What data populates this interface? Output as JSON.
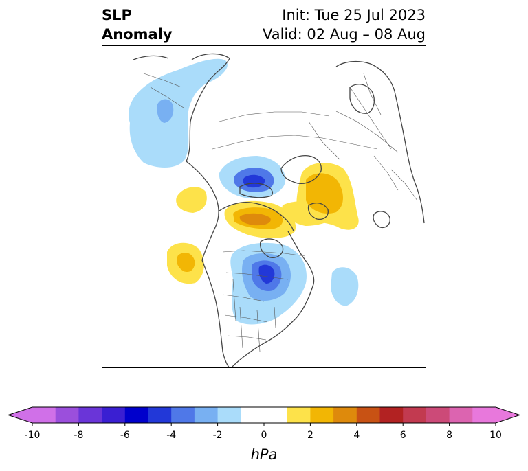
{
  "title": {
    "left_line1": "SLP",
    "left_line2": "Anomaly",
    "init": "Init: Tue 25 Jul 2023",
    "valid": "Valid: 02 Aug – 08 Aug"
  },
  "colorbar": {
    "unit": "hPa",
    "min": -10,
    "max": 10,
    "step": 1,
    "tick_values": [
      -10,
      -8,
      -6,
      -4,
      -2,
      0,
      2,
      4,
      6,
      8,
      10
    ],
    "tick_labels": [
      "-10",
      "-8",
      "-6",
      "-4",
      "-2",
      "0",
      "2",
      "4",
      "6",
      "8",
      "10"
    ],
    "colors": [
      "#d070e8",
      "#9b4fdc",
      "#6a35d8",
      "#3a1fd2",
      "#0000cc",
      "#2238d8",
      "#4f78e8",
      "#78b0f2",
      "#aadcfa",
      "#ffffff",
      "#ffffff",
      "#fde24a",
      "#f2b604",
      "#de8a0c",
      "#c85214",
      "#b22222",
      "#c23a50",
      "#cc4a78",
      "#dc64b0",
      "#e878dc"
    ],
    "extend": "both"
  },
  "map": {
    "projection": "north-polar-stereographic",
    "coastline_color": "#444444",
    "border_color": "#555555"
  }
}
